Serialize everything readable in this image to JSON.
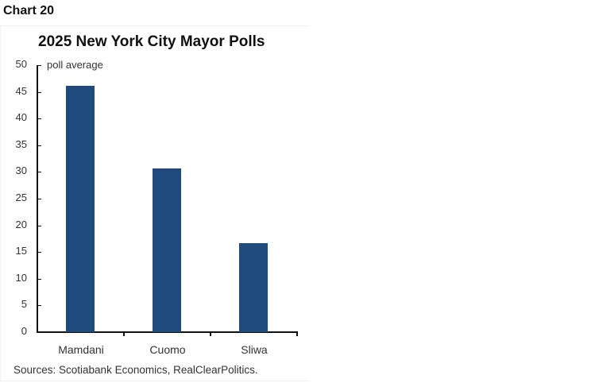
{
  "header": {
    "chart_number": "Chart 20"
  },
  "chart_data": {
    "type": "bar",
    "title": "2025 New York City Mayor Polls",
    "ylabel": "poll average",
    "xlabel": "",
    "categories": [
      "Mamdani",
      "Cuomo",
      "Sliwa"
    ],
    "values": [
      46.1,
      30.6,
      16.7
    ],
    "ylim": [
      0,
      50
    ],
    "yticks": [
      0,
      5,
      10,
      15,
      20,
      25,
      30,
      35,
      40,
      45,
      50
    ],
    "grid": false,
    "legend": null,
    "bar_color": "#1f4a7c",
    "source": "Sources: Scotiabank Economics, RealClearPolitics."
  }
}
